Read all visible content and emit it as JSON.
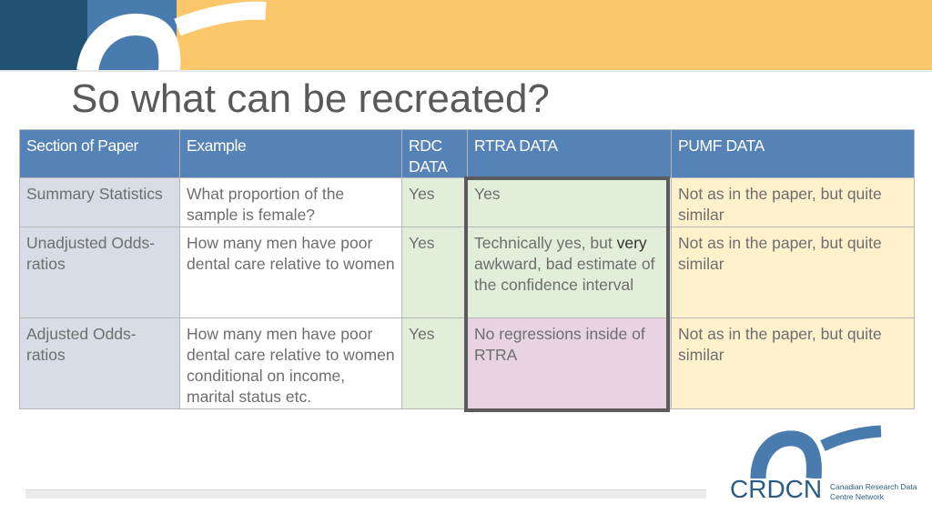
{
  "slide": {
    "title": "So what can be recreated?"
  },
  "table": {
    "headers": [
      "Section of Paper",
      "Example",
      "RDC DATA",
      "RTRA DATA",
      "PUMF DATA"
    ],
    "rows": [
      {
        "section": "Summary Statistics",
        "example": "What proportion of the sample is female?",
        "rdc": "Yes",
        "rtra": "Yes",
        "pumf": "Not as in the paper, but quite similar"
      },
      {
        "section": "Unadjusted Odds-ratios",
        "example": "How many men have poor dental care relative to women",
        "rdc": "Yes",
        "rtra_pre": "Technically yes, but ",
        "rtra_em": "very",
        "rtra_post": " awkward, bad estimate of the confidence interval",
        "pumf": "Not as in the paper, but quite similar"
      },
      {
        "section": "Adjusted Odds-ratios",
        "example": "How many men have poor dental care relative to women conditional on income, marital status etc.",
        "rdc": "Yes",
        "rtra": "No regressions inside of RTRA",
        "pumf": "Not as in the paper, but quite similar"
      }
    ]
  },
  "logo": {
    "wordmark": "CRDCN",
    "subtitle": "Canadian Research Data Centre Network"
  },
  "colors": {
    "header_blue": "#5683b7",
    "band_orange": "#fcc76a",
    "band_navy": "#205273",
    "rtra_yes_green": "#e1eed9",
    "rtra_no_pink": "#e8d4e0",
    "pumf_yellow": "#fff1cc"
  }
}
